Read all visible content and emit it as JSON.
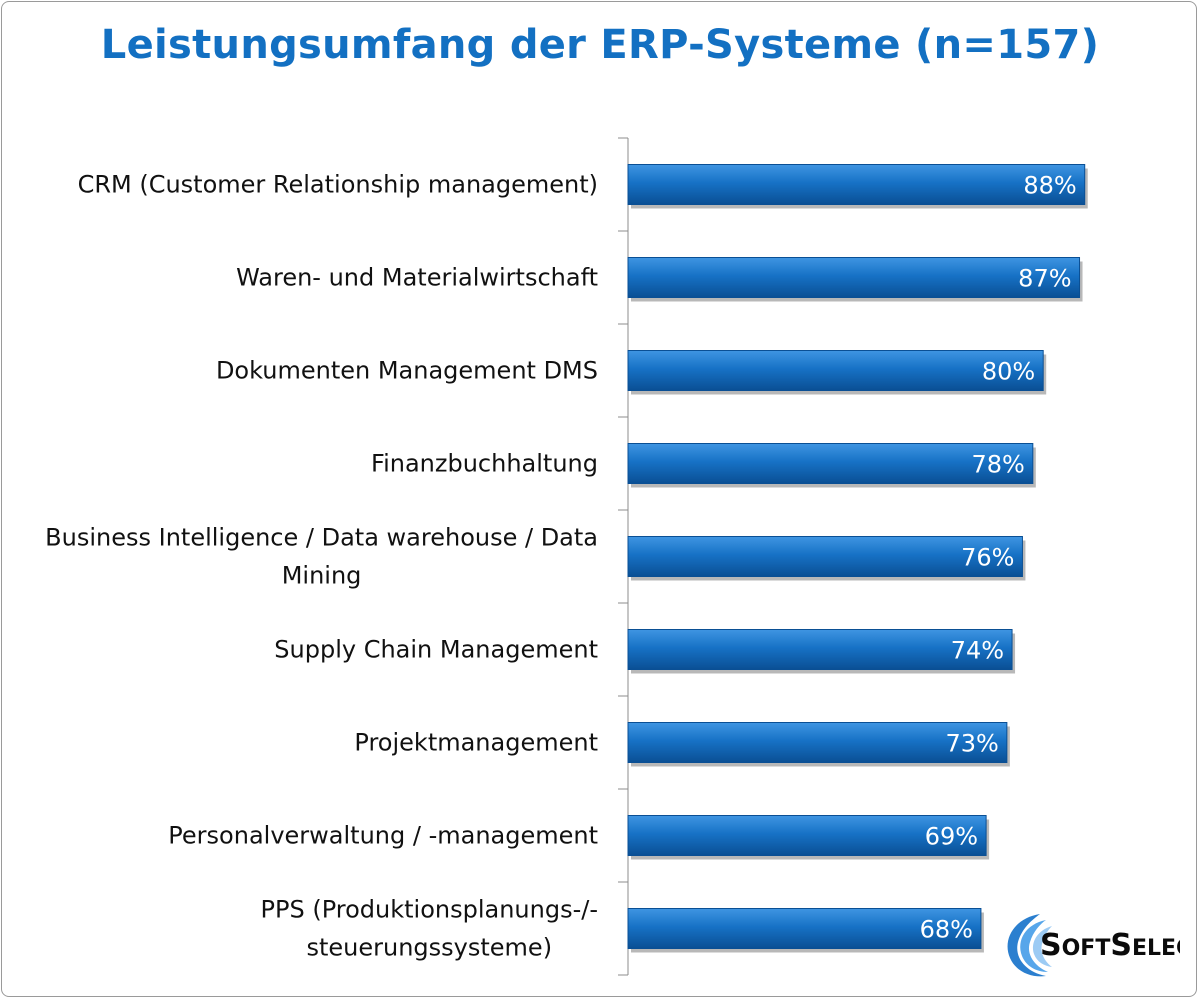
{
  "chart_data": {
    "type": "bar",
    "orientation": "horizontal",
    "title": "Leistungsumfang der ERP-Systeme (n=157)",
    "categories": [
      [
        "CRM (Customer Relationship management)"
      ],
      [
        "Waren- und Materialwirtschaft"
      ],
      [
        "Dokumenten Management DMS"
      ],
      [
        "Finanzbuchhaltung"
      ],
      [
        "Business Intelligence / Data warehouse / Data",
        "Mining"
      ],
      [
        "Supply Chain Management"
      ],
      [
        "Projektmanagement"
      ],
      [
        "Personalverwaltung / -management"
      ],
      [
        "PPS (Produktionsplanungs-/-",
        "steuerungssysteme)"
      ]
    ],
    "values": [
      88,
      87,
      80,
      78,
      76,
      74,
      73,
      69,
      68
    ],
    "value_labels": [
      "88%",
      "87%",
      "80%",
      "78%",
      "76%",
      "74%",
      "73%",
      "69%",
      "68%"
    ],
    "unit": "%",
    "xlim": [
      0,
      100
    ],
    "grid": false,
    "legend": "none",
    "bar_color": "#1772c6",
    "bar_color_light": "#3f95e2",
    "bar_color_dark": "#0a4f94"
  },
  "logo": {
    "text_s": "S",
    "text_oft": "OFT",
    "text_s2": "S",
    "text_elect": "ELECT",
    "icon": "swoosh-globe-icon"
  }
}
